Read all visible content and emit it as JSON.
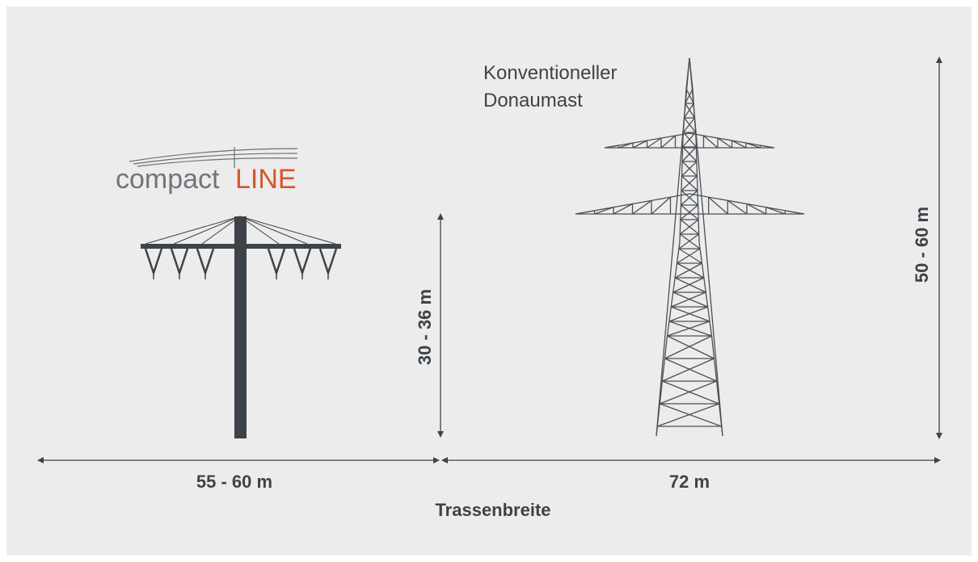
{
  "logo": {
    "prefix": "compact",
    "suffix": "LINE"
  },
  "conventional_label": [
    "Konventioneller",
    "Donaumast"
  ],
  "dimensions": {
    "compact_height": "30 - 36 m",
    "conventional_height": "50 - 60 m",
    "compact_width": "55 - 60 m",
    "conventional_width": "72 m"
  },
  "axis_label": "Trassenbreite"
}
